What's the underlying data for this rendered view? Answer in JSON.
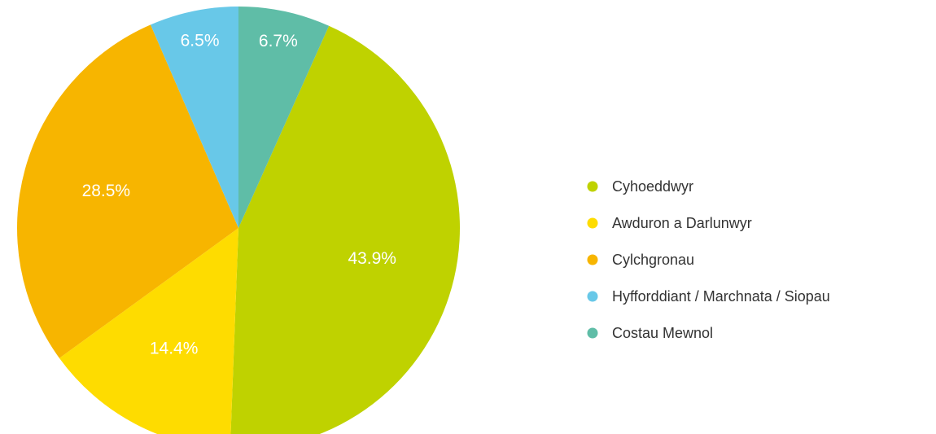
{
  "chart_data": {
    "type": "pie",
    "categories": [
      "Cyhoeddwyr",
      "Awduron a Darlunwyr",
      "Cylchgronau",
      "Hyfforddiant / Marchnata / Siopau",
      "Costau Mewnol"
    ],
    "values": [
      43.9,
      14.4,
      28.5,
      6.5,
      6.7
    ],
    "value_labels": [
      "43.9%",
      "14.4%",
      "28.5%",
      "6.5%",
      "6.7%"
    ],
    "colors": [
      "#bfd200",
      "#fedc00",
      "#f7b500",
      "#68c8e8",
      "#5fbda7"
    ],
    "legend": "right"
  }
}
